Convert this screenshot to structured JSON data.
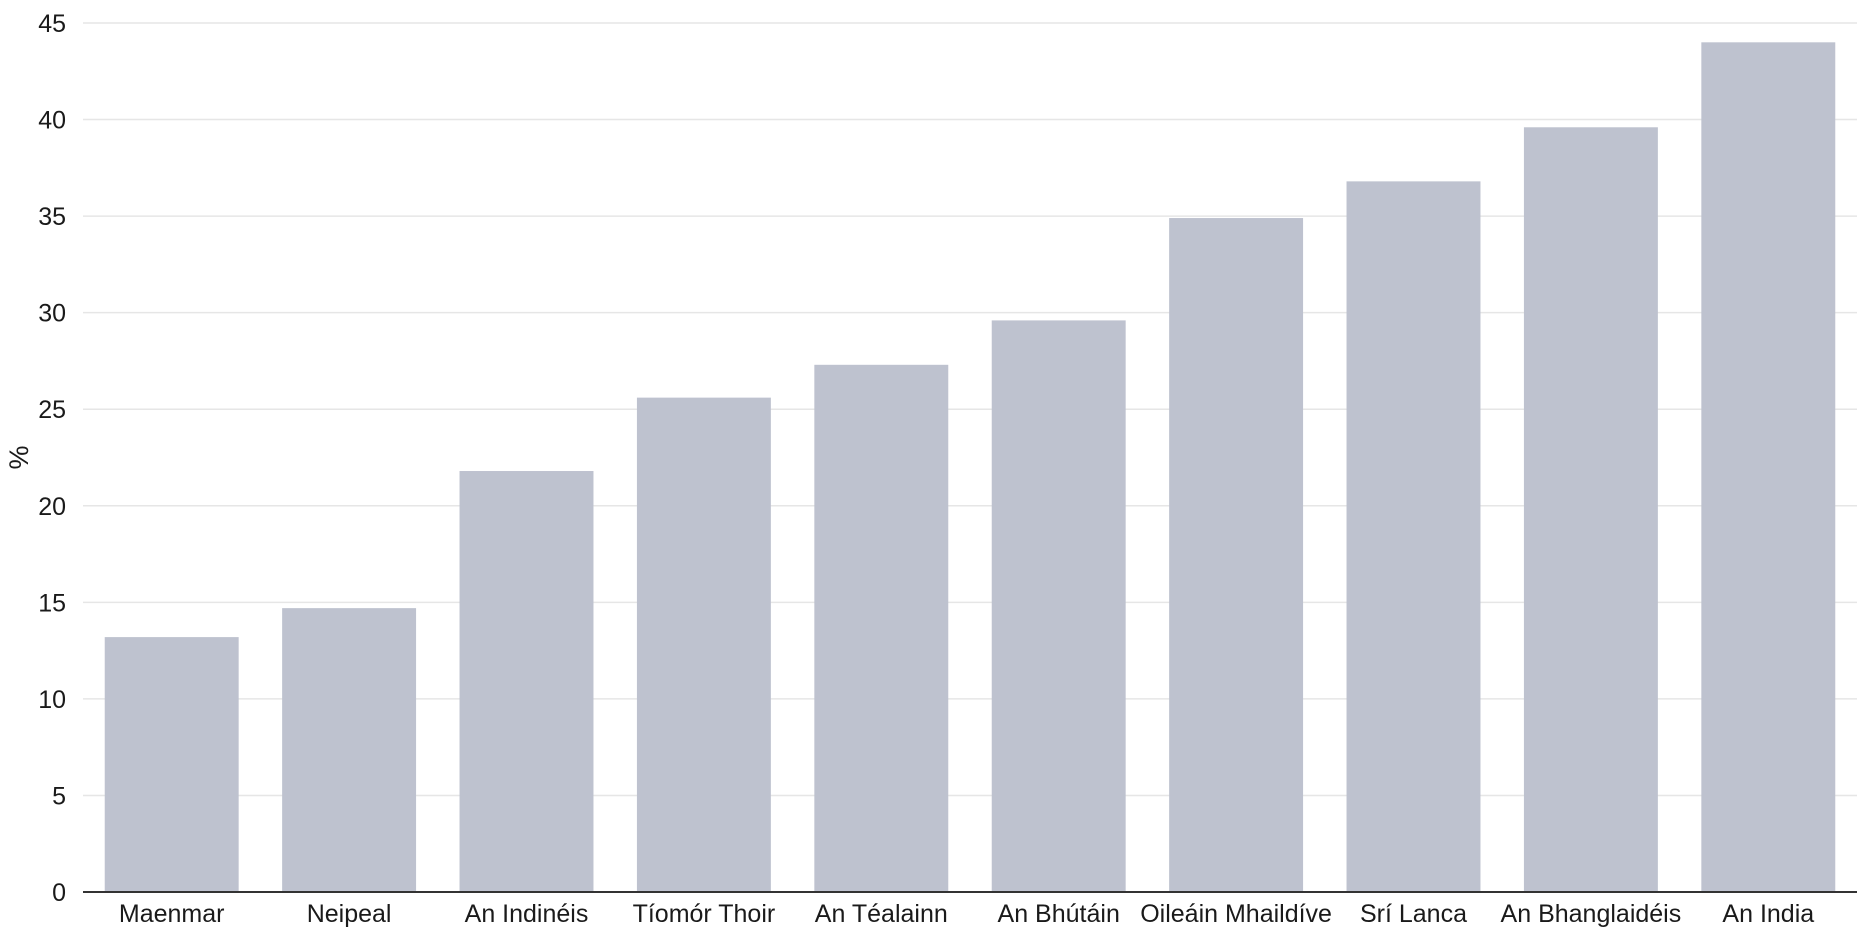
{
  "chart_data": {
    "type": "bar",
    "title": "",
    "xlabel": "",
    "ylabel": "%",
    "ylim": [
      0,
      45
    ],
    "yticks": [
      0,
      5,
      10,
      15,
      20,
      25,
      30,
      35,
      40,
      45
    ],
    "grid": true,
    "categories": [
      "Maenmar",
      "Neipeal",
      "An Indinéis",
      "Tíomór Thoir",
      "An Téalainn",
      "An Bhútáin",
      "Oileáin Mhaildíve",
      "Srí Lanca",
      "An Bhanglaidéis",
      "An India"
    ],
    "series": [
      {
        "values": [
          13.2,
          14.7,
          21.8,
          25.6,
          27.3,
          29.6,
          34.9,
          36.8,
          39.6,
          44.0
        ]
      }
    ],
    "colors": {
      "bar": "#bec2cf",
      "grid": "#e6e6e6",
      "axis": "#333333",
      "text": "#1a1a1a"
    }
  }
}
